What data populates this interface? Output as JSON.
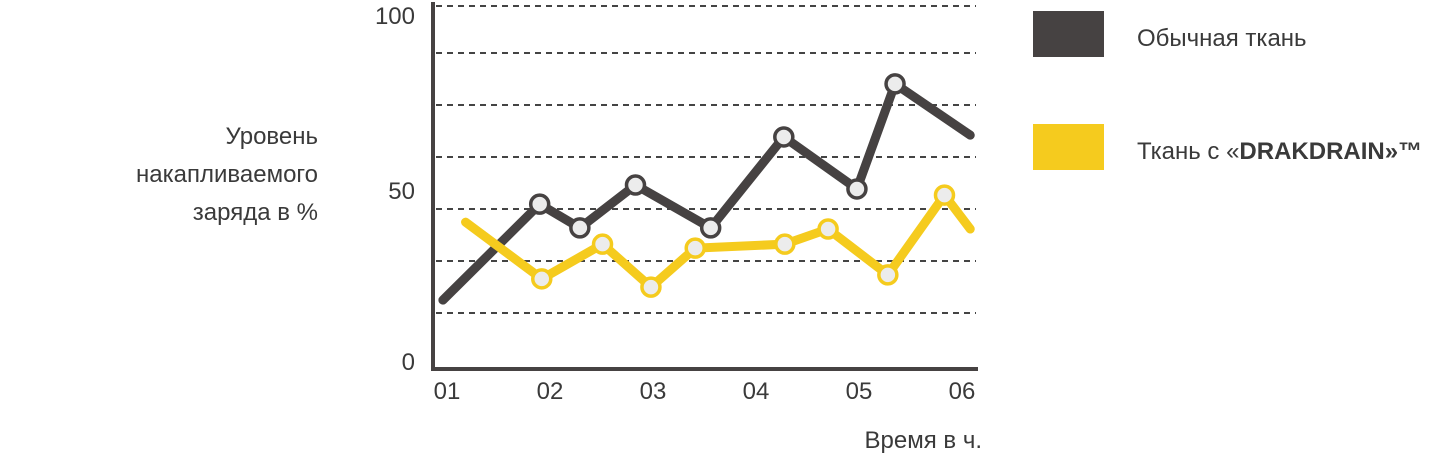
{
  "chart_data": {
    "type": "line",
    "ylabel": [
      "Уровень",
      "накапливаемого",
      "заряда в %"
    ],
    "xlabel": "Время в ч.",
    "ylim": [
      0,
      100
    ],
    "xlim": [
      1,
      6
    ],
    "y_ticks": [
      "0",
      "50",
      "100"
    ],
    "x_ticks": [
      "01",
      "02",
      "03",
      "04",
      "05",
      "06"
    ],
    "grid": "horizontal dashed",
    "legend_position": "right",
    "series": [
      {
        "name": "Обычная ткань",
        "color": "#464242",
        "x": [
          0.96,
          1.9,
          2.29,
          2.83,
          3.56,
          4.27,
          4.98,
          5.35,
          6.08
        ],
        "y": [
          18.8,
          45.4,
          38.8,
          50.7,
          38.8,
          64.0,
          49.6,
          78.7,
          64.5
        ]
      },
      {
        "name_prefix": "Ткань с «",
        "name_bold": "DRAKDRAIN",
        "name_suffix": "»™",
        "color": "#f5cb1e",
        "x": [
          1.18,
          1.92,
          2.51,
          2.98,
          3.41,
          4.28,
          4.7,
          5.28,
          5.83,
          6.08
        ],
        "y": [
          40.4,
          24.7,
          34.3,
          22.4,
          33.2,
          34.3,
          38.5,
          25.8,
          47.9,
          38.5
        ]
      }
    ]
  }
}
